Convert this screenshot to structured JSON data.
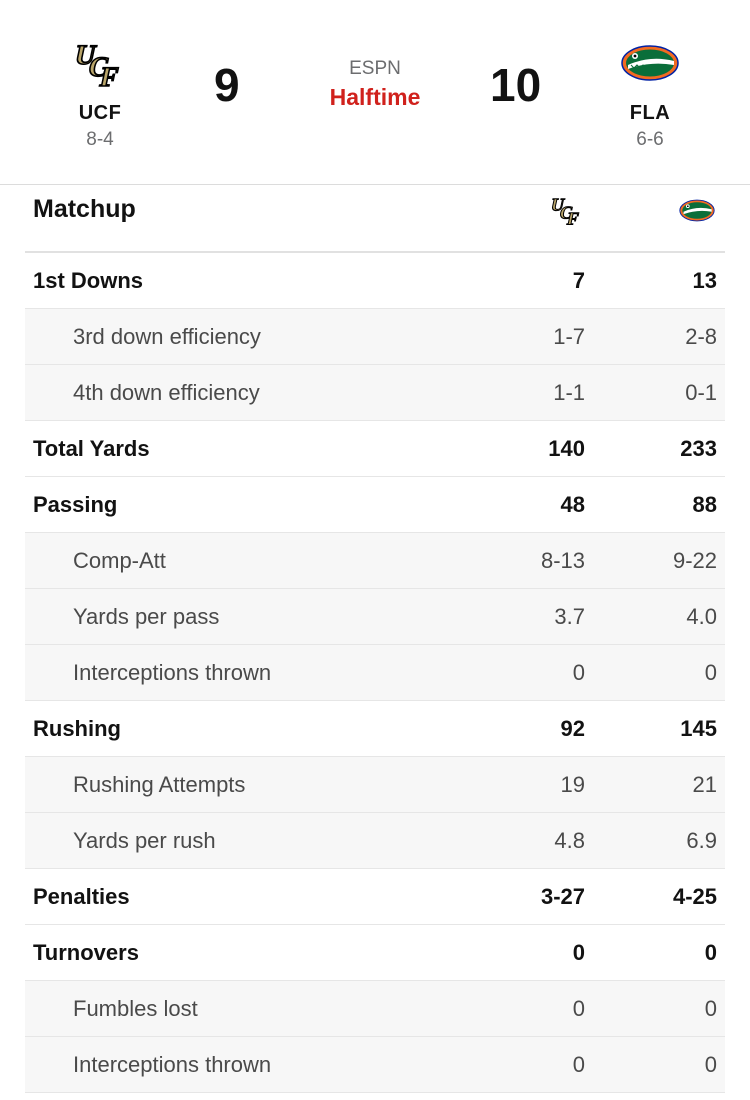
{
  "game": {
    "away": {
      "abbr": "UCF",
      "record": "8-4",
      "score": "9",
      "logo_icon": "ucf-logo-icon"
    },
    "home": {
      "abbr": "FLA",
      "record": "6-6",
      "score": "10",
      "logo_icon": "florida-gators-logo-icon"
    },
    "network": "ESPN",
    "status": "Halftime",
    "status_color": "#d0211c"
  },
  "matchup": {
    "title": "Matchup",
    "rows": [
      {
        "label": "1st Downs",
        "away": "7",
        "home": "13",
        "type": "main"
      },
      {
        "label": "3rd down efficiency",
        "away": "1-7",
        "home": "2-8",
        "type": "sub"
      },
      {
        "label": "4th down efficiency",
        "away": "1-1",
        "home": "0-1",
        "type": "sub"
      },
      {
        "label": "Total Yards",
        "away": "140",
        "home": "233",
        "type": "main"
      },
      {
        "label": "Passing",
        "away": "48",
        "home": "88",
        "type": "main"
      },
      {
        "label": "Comp-Att",
        "away": "8-13",
        "home": "9-22",
        "type": "sub"
      },
      {
        "label": "Yards per pass",
        "away": "3.7",
        "home": "4.0",
        "type": "sub"
      },
      {
        "label": "Interceptions thrown",
        "away": "0",
        "home": "0",
        "type": "sub"
      },
      {
        "label": "Rushing",
        "away": "92",
        "home": "145",
        "type": "main"
      },
      {
        "label": "Rushing Attempts",
        "away": "19",
        "home": "21",
        "type": "sub"
      },
      {
        "label": "Yards per rush",
        "away": "4.8",
        "home": "6.9",
        "type": "sub"
      },
      {
        "label": "Penalties",
        "away": "3-27",
        "home": "4-25",
        "type": "main"
      },
      {
        "label": "Turnovers",
        "away": "0",
        "home": "0",
        "type": "main"
      },
      {
        "label": "Fumbles lost",
        "away": "0",
        "home": "0",
        "type": "sub"
      },
      {
        "label": "Interceptions thrown",
        "away": "0",
        "home": "0",
        "type": "sub"
      }
    ]
  }
}
